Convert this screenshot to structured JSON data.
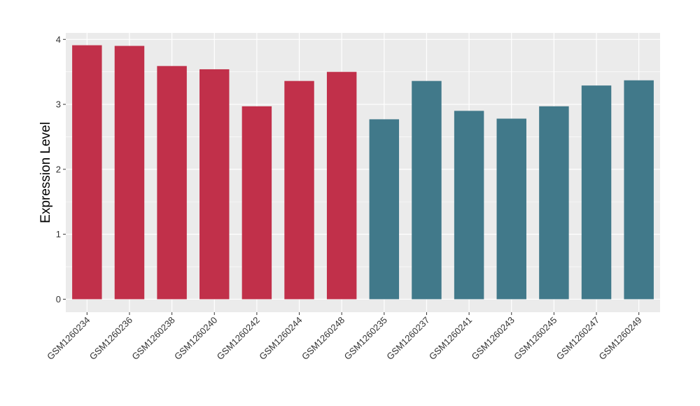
{
  "chart_data": {
    "type": "bar",
    "title": "",
    "xlabel": "",
    "ylabel": "Expression Level",
    "ylim": [
      -0.2,
      4.1
    ],
    "yticks": [
      0,
      1,
      2,
      3,
      4
    ],
    "grid": true,
    "legend": "none",
    "background_color": "#ebebeb",
    "gridline_color": "#ffffff",
    "categories": [
      "GSM1260234",
      "GSM1260236",
      "GSM1260238",
      "GSM1260240",
      "GSM1260242",
      "GSM1260244",
      "GSM1260248",
      "GSM1260235",
      "GSM1260237",
      "GSM1260241",
      "GSM1260243",
      "GSM1260245",
      "GSM1260247",
      "GSM1260249"
    ],
    "values": [
      3.91,
      3.9,
      3.59,
      3.54,
      2.97,
      3.36,
      3.5,
      2.77,
      3.36,
      2.9,
      2.78,
      2.97,
      3.29,
      3.37
    ],
    "group_colors": [
      "#c1304a",
      "#c1304a",
      "#c1304a",
      "#c1304a",
      "#c1304a",
      "#c1304a",
      "#c1304a",
      "#41798a",
      "#41798a",
      "#41798a",
      "#41798a",
      "#41798a",
      "#41798a",
      "#41798a"
    ]
  }
}
